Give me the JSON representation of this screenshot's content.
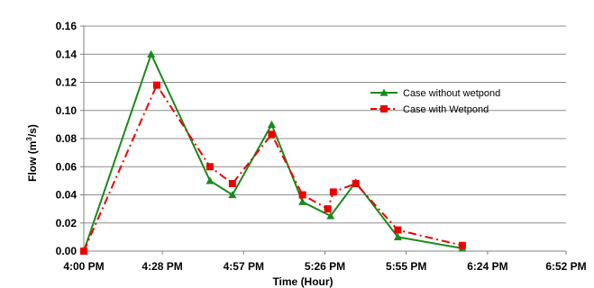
{
  "chart_data": {
    "type": "line",
    "title": "",
    "xlabel": "Time (Hour)",
    "ylabel_main": "Flow (m",
    "ylabel_sup": "3",
    "ylabel_tail": "/s)",
    "ylim": [
      0,
      0.16
    ],
    "yticks": [
      "0.00",
      "0.02",
      "0.04",
      "0.06",
      "0.08",
      "0.10",
      "0.12",
      "0.14",
      "0.16"
    ],
    "xlim": [
      0,
      172
    ],
    "xtick_minutes": [
      0,
      28,
      57,
      86,
      115,
      144,
      172
    ],
    "xticks": [
      "4:00 PM",
      "4:28 PM",
      "4:57 PM",
      "5:26 PM",
      "5:55 PM",
      "6:24 PM",
      "6:52 PM"
    ],
    "grid": "horizontal",
    "legend_position": "right",
    "series": [
      {
        "name": "Case without wetpond",
        "color": "#1a8a1a",
        "marker": "triangle",
        "line": "solid",
        "x": [
          0,
          24,
          45,
          53,
          67,
          78,
          88,
          97,
          112,
          135
        ],
        "y": [
          0.0,
          0.14,
          0.05,
          0.04,
          0.09,
          0.035,
          0.025,
          0.049,
          0.01,
          0.002
        ]
      },
      {
        "name": "Case with Wetpond",
        "color": "#ee0000",
        "marker": "square",
        "line": "dashdot",
        "x": [
          0,
          26,
          45,
          53,
          67,
          78,
          87,
          89,
          97,
          112,
          135
        ],
        "y": [
          0.0,
          0.118,
          0.06,
          0.048,
          0.083,
          0.04,
          0.03,
          0.042,
          0.048,
          0.015,
          0.004
        ]
      }
    ]
  }
}
